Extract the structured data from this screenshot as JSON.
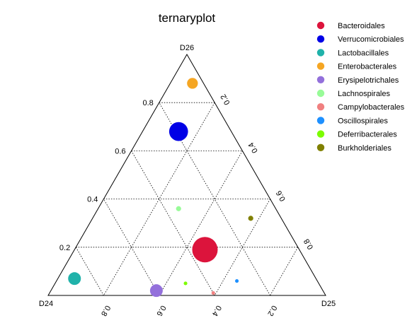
{
  "chart_data": {
    "type": "scatter",
    "subtype": "ternary",
    "title": "ternaryplot",
    "vertices": {
      "top": "D26",
      "left": "D24",
      "right": "D25"
    },
    "tick_values": [
      0.2,
      0.4,
      0.6,
      0.8
    ],
    "tick_labels": [
      "0.2",
      "0.4",
      "0.6",
      "0.8"
    ],
    "grid": true,
    "legend_position": "right",
    "series": [
      {
        "name": "Bacteroidales",
        "color": "#DC143C",
        "D24": 0.34,
        "D25": 0.47,
        "D26": 0.19,
        "size": 1.0
      },
      {
        "name": "Verrucomicrobiales",
        "color": "#0000E6",
        "D24": 0.19,
        "D25": 0.13,
        "D26": 0.68,
        "size": 0.55
      },
      {
        "name": "Lactobacillales",
        "color": "#20B2AA",
        "D24": 0.87,
        "D25": 0.06,
        "D26": 0.07,
        "size": 0.25
      },
      {
        "name": "Enterobacterales",
        "color": "#F5A623",
        "D24": 0.04,
        "D25": 0.08,
        "D26": 0.88,
        "size": 0.18
      },
      {
        "name": "Erysipelotrichales",
        "color": "#9370DB",
        "D24": 0.6,
        "D25": 0.38,
        "D26": 0.02,
        "size": 0.25
      },
      {
        "name": "Lachnospirales",
        "color": "#98FB98",
        "D24": 0.35,
        "D25": 0.29,
        "D26": 0.36,
        "size": 0.04
      },
      {
        "name": "Campylobacterales",
        "color": "#F08080",
        "D24": 0.4,
        "D25": 0.59,
        "D26": 0.01,
        "size": 0.02
      },
      {
        "name": "Oscillospirales",
        "color": "#1E90FF",
        "D24": 0.29,
        "D25": 0.65,
        "D26": 0.06,
        "size": 0.02
      },
      {
        "name": "Deferribacterales",
        "color": "#7CFC00",
        "D24": 0.48,
        "D25": 0.47,
        "D26": 0.05,
        "size": 0.02
      },
      {
        "name": "Burkholderiales",
        "color": "#808000",
        "D24": 0.11,
        "D25": 0.57,
        "D26": 0.32,
        "size": 0.04
      }
    ]
  }
}
